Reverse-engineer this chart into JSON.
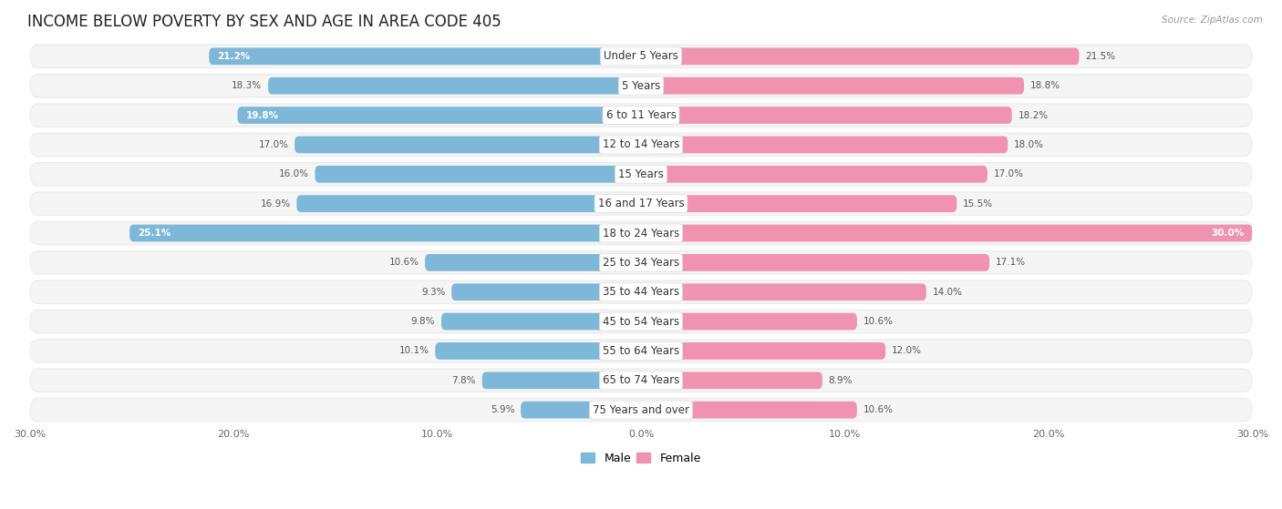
{
  "title": "INCOME BELOW POVERTY BY SEX AND AGE IN AREA CODE 405",
  "source": "Source: ZipAtlas.com",
  "categories": [
    "Under 5 Years",
    "5 Years",
    "6 to 11 Years",
    "12 to 14 Years",
    "15 Years",
    "16 and 17 Years",
    "18 to 24 Years",
    "25 to 34 Years",
    "35 to 44 Years",
    "45 to 54 Years",
    "55 to 64 Years",
    "65 to 74 Years",
    "75 Years and over"
  ],
  "male_values": [
    21.2,
    18.3,
    19.8,
    17.0,
    16.0,
    16.9,
    25.1,
    10.6,
    9.3,
    9.8,
    10.1,
    7.8,
    5.9
  ],
  "female_values": [
    21.5,
    18.8,
    18.2,
    18.0,
    17.0,
    15.5,
    30.0,
    17.1,
    14.0,
    10.6,
    12.0,
    8.9,
    10.6
  ],
  "male_color": "#7db8d8",
  "female_color": "#f093b0",
  "male_label": "Male",
  "female_label": "Female",
  "xlim": 30.0,
  "bar_height": 0.58,
  "row_bg_color": "#ebebeb",
  "row_inner_color": "#f5f5f5",
  "title_fontsize": 12,
  "label_fontsize": 8.5,
  "value_fontsize": 7.5,
  "axis_label_fontsize": 8,
  "white_label_threshold_male": 19.0,
  "white_label_threshold_female": 25.0
}
